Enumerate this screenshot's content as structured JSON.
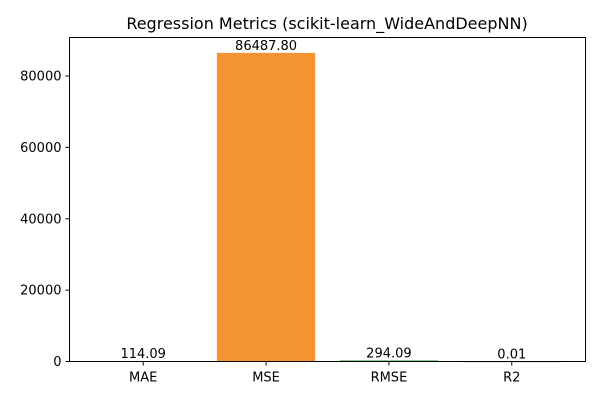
{
  "chart_data": {
    "type": "bar",
    "title": "Regression Metrics (scikit-learn_WideAndDeepNN)",
    "xlabel": "",
    "ylabel": "",
    "categories": [
      "MAE",
      "MSE",
      "RMSE",
      "R2"
    ],
    "values": [
      114.09,
      86487.8,
      294.09,
      0.01
    ],
    "value_labels": [
      "114.09",
      "86487.80",
      "294.09",
      "0.01"
    ],
    "colors": [
      "#1f77b4",
      "#f39332",
      "#2ca02c",
      "#d62728"
    ],
    "ylim": [
      0,
      90800
    ],
    "yticks": [
      0,
      20000,
      40000,
      60000,
      80000
    ],
    "ytick_labels": [
      "0",
      "20000",
      "40000",
      "60000",
      "80000"
    ],
    "grid": false,
    "legend": "none"
  }
}
